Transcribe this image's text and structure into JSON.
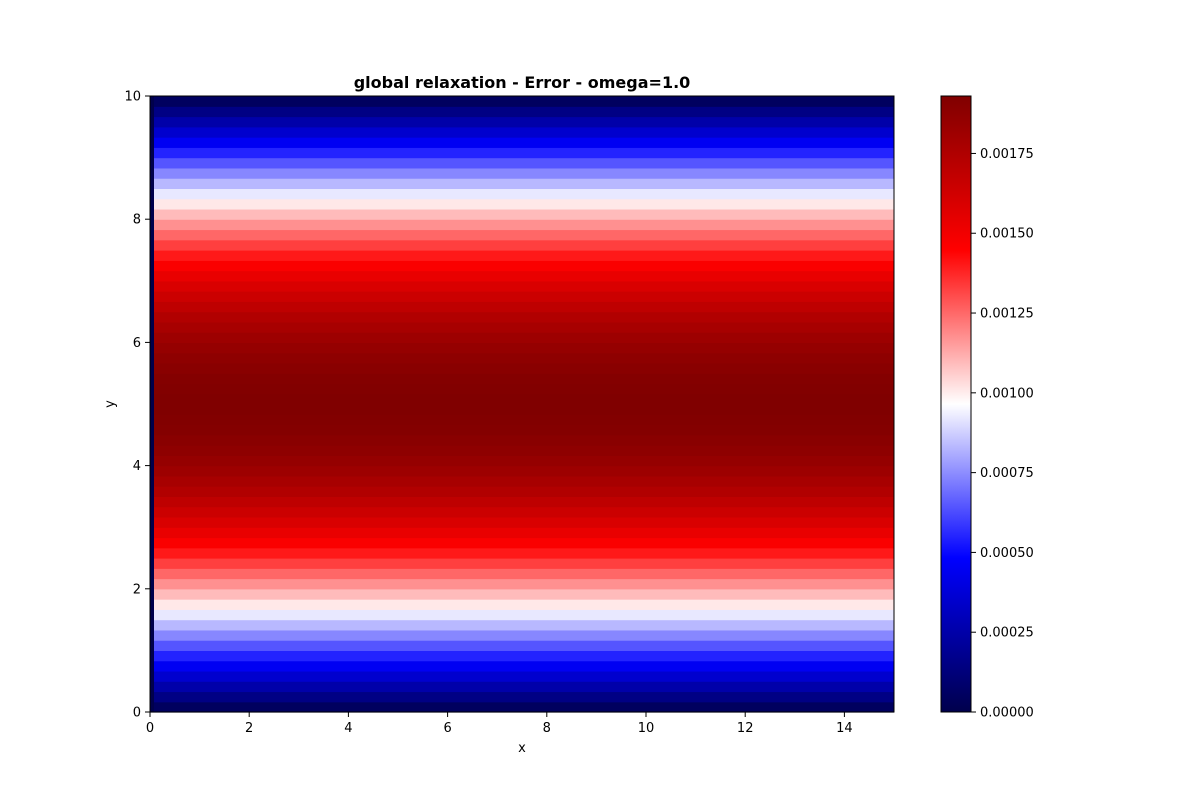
{
  "chart_data": {
    "type": "heatmap",
    "title": "global relaxation - Error - omega=1.0",
    "xlabel": "x",
    "ylabel": "y",
    "xlim": [
      0,
      15
    ],
    "ylim": [
      0,
      10
    ],
    "x_ticks": [
      0,
      2,
      4,
      6,
      8,
      10,
      12,
      14
    ],
    "y_ticks": [
      0,
      2,
      4,
      6,
      8,
      10
    ],
    "x_tick_labels": [
      "0",
      "2",
      "4",
      "6",
      "8",
      "10",
      "12",
      "14"
    ],
    "y_tick_labels": [
      "0",
      "2",
      "4",
      "6",
      "8",
      "10"
    ],
    "grid": false,
    "colormap": "seismic",
    "colormap_stops": [
      "#00004c",
      "#0000ff",
      "#ffffff",
      "#ff0000",
      "#800000"
    ],
    "field": {
      "description_of_form": "error varies with y only, symmetric about y=5",
      "peak_value": 0.00193,
      "boundary_value": 0.0,
      "y_rows": 60,
      "x_boundary_column_value": 0.0
    },
    "colorbar": {
      "min": 0.0,
      "max": 0.00193,
      "ticks": [
        0.0,
        0.00025,
        0.0005,
        0.00075,
        0.001,
        0.00125,
        0.0015,
        0.00175
      ],
      "tick_labels": [
        "0.00000",
        "0.00025",
        "0.00050",
        "0.00075",
        "0.00100",
        "0.00125",
        "0.00150",
        "0.00175"
      ]
    }
  }
}
